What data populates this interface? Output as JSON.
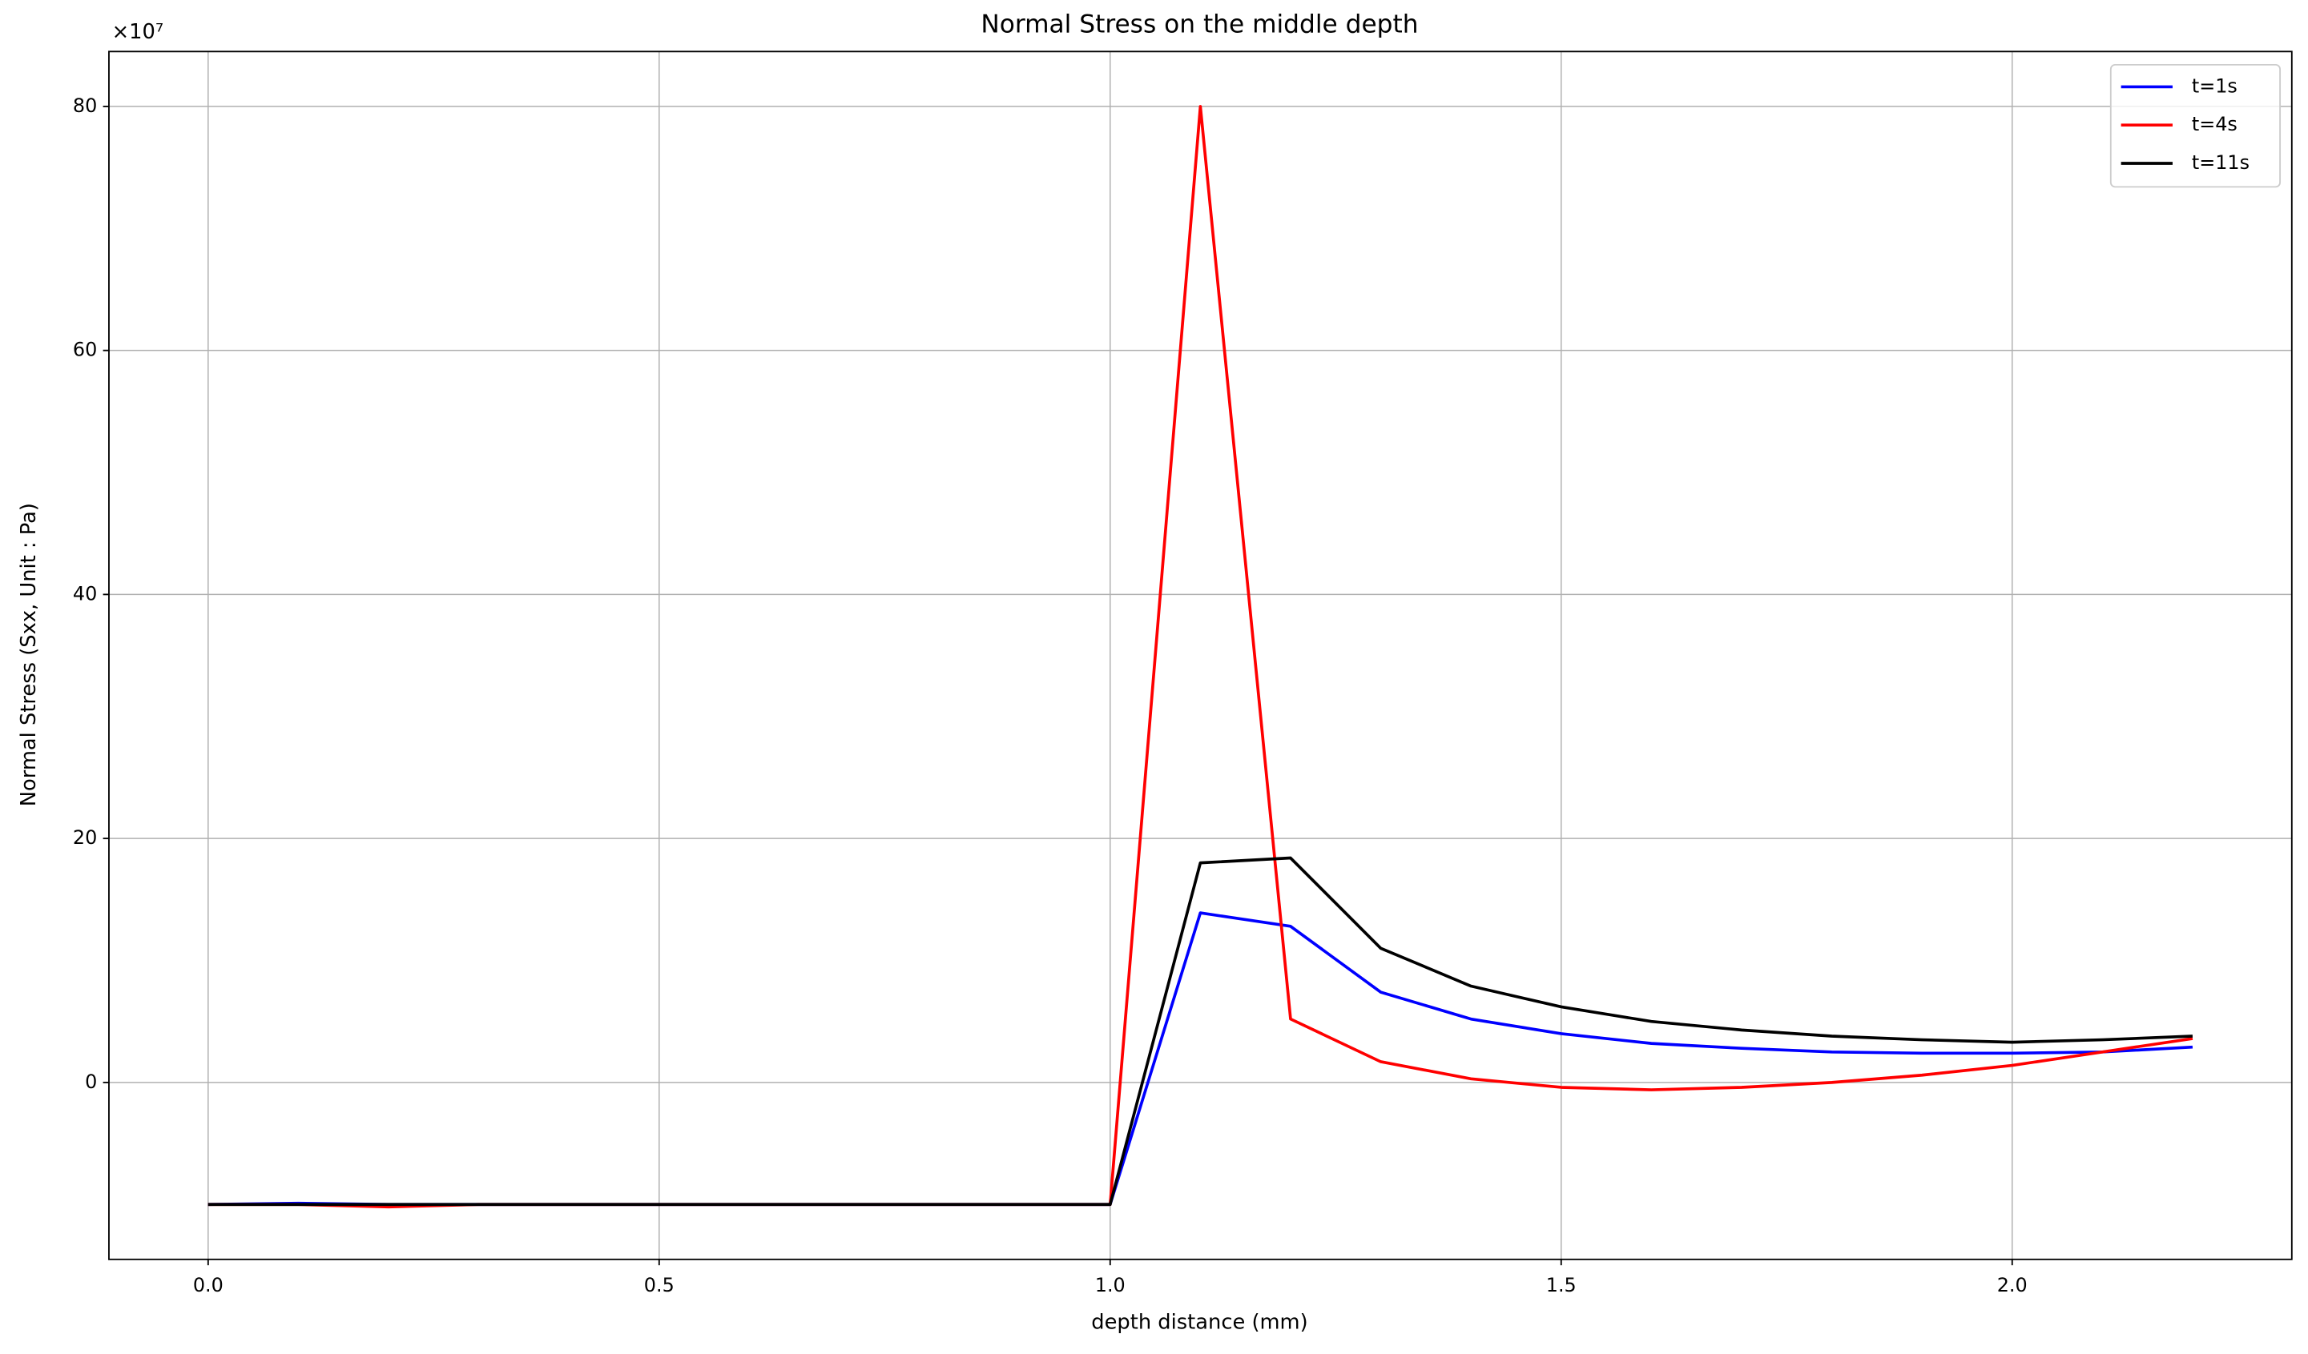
{
  "chart_data": {
    "type": "line",
    "title": "Normal Stress on the middle depth",
    "x_label": "depth distance (mm)",
    "y_label": "Normal Stress (Sxx, Unit : Pa)",
    "y_multiplier_label": "×10⁷",
    "x": [
      0,
      0.1,
      0.2,
      0.3,
      0.4,
      0.5,
      0.6,
      0.7,
      0.8,
      0.9,
      1.0,
      1.1,
      1.2,
      1.3,
      1.4,
      1.5,
      1.6,
      1.7,
      1.8,
      1.9,
      2.0,
      2.1,
      2.2
    ],
    "series": [
      {
        "name": "t=1s",
        "color": "#0000ff",
        "values": [
          -10,
          -9.9,
          -10,
          -10,
          -10,
          -10,
          -10,
          -10,
          -10,
          -10,
          -10,
          13.9,
          12.8,
          7.4,
          5.2,
          4.0,
          3.2,
          2.8,
          2.5,
          2.4,
          2.4,
          2.5,
          2.9
        ]
      },
      {
        "name": "t=4s",
        "color": "#ff0000",
        "values": [
          -10,
          -10,
          -10.2,
          -10,
          -10,
          -10,
          -10,
          -10,
          -10,
          -10,
          -10,
          80,
          5.2,
          1.7,
          0.3,
          -0.4,
          -0.6,
          -0.4,
          0,
          0.6,
          1.4,
          2.5,
          3.6
        ]
      },
      {
        "name": "t=11s",
        "color": "#000000",
        "values": [
          -10,
          -10,
          -10,
          -10,
          -10,
          -10,
          -10,
          -10,
          -10,
          -10,
          -10,
          18.0,
          18.4,
          11.0,
          7.9,
          6.2,
          5.0,
          4.3,
          3.8,
          3.5,
          3.3,
          3.5,
          3.8
        ]
      }
    ],
    "xlim": [
      -0.11,
      2.31
    ],
    "ylim": [
      -14.5,
      84.5
    ],
    "xticks": [
      {
        "value": 0,
        "label": "0.0"
      },
      0.5,
      {
        "value": 1,
        "label": "1.0"
      },
      1.5,
      {
        "value": 2,
        "label": "2.0"
      }
    ],
    "yticks": [
      0,
      20,
      40,
      60,
      80
    ],
    "grid": true,
    "legend": "upper right"
  }
}
